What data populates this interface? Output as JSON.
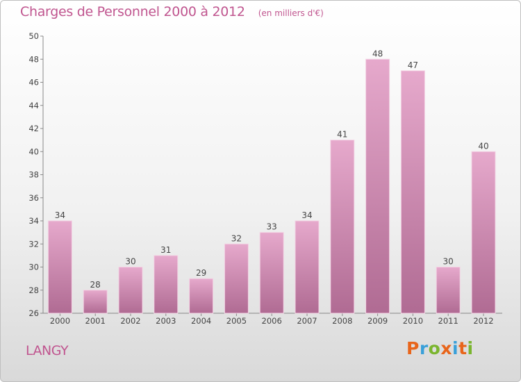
{
  "chart_data": {
    "type": "bar",
    "title": "Charges de Personnel 2000 à 2012",
    "subtitle": "(en milliers d'€)",
    "categories": [
      "2000",
      "2001",
      "2002",
      "2003",
      "2004",
      "2005",
      "2006",
      "2007",
      "2008",
      "2009",
      "2010",
      "2011",
      "2012"
    ],
    "values": [
      34,
      28,
      30,
      31,
      29,
      32,
      33,
      34,
      41,
      48,
      47,
      30,
      40
    ],
    "ylim": [
      26,
      50
    ],
    "yticks": [
      26,
      28,
      30,
      32,
      34,
      36,
      38,
      40,
      42,
      44,
      46,
      48,
      50
    ],
    "grid": false,
    "bar_color": "#cc7fad",
    "data_labels": true
  },
  "footer": {
    "place": "LANGY",
    "logo": {
      "letters": [
        "P",
        "r",
        "o",
        "x",
        "i",
        "t",
        "i"
      ],
      "colors": [
        "#e8651b",
        "#3aa0d9",
        "#7ab52e",
        "#e8651b",
        "#3aa0d9",
        "#e8651b",
        "#7ab52e"
      ]
    }
  }
}
